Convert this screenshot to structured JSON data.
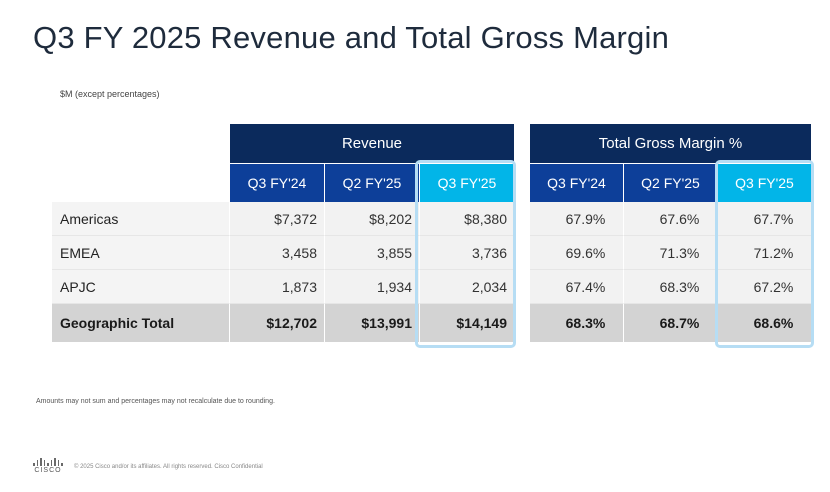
{
  "title": "Q3 FY 2025 Revenue and Total Gross Margin",
  "units": "$M (except percentages)",
  "revenue": {
    "group_label": "Revenue",
    "columns": [
      "Q3 FY'24",
      "Q2 FY'25",
      "Q3 FY'25"
    ],
    "rows": [
      {
        "label": "Americas",
        "values": [
          "$7,372",
          "$8,202",
          "$8,380"
        ]
      },
      {
        "label": "EMEA",
        "values": [
          "3,458",
          "3,855",
          "3,736"
        ]
      },
      {
        "label": "APJC",
        "values": [
          "1,873",
          "1,934",
          "2,034"
        ]
      },
      {
        "label": "Geographic Total",
        "values": [
          "$12,702",
          "$13,991",
          "$14,149"
        ]
      }
    ]
  },
  "gross_margin": {
    "group_label": "Total Gross Margin %",
    "columns": [
      "Q3 FY'24",
      "Q2 FY'25",
      "Q3 FY'25"
    ],
    "rows": [
      {
        "values": [
          "67.9%",
          "67.6%",
          "67.7%"
        ]
      },
      {
        "values": [
          "69.6%",
          "71.3%",
          "71.2%"
        ]
      },
      {
        "values": [
          "67.4%",
          "68.3%",
          "67.2%"
        ]
      },
      {
        "values": [
          "68.3%",
          "68.7%",
          "68.6%"
        ]
      }
    ]
  },
  "footnote": "Amounts may not sum and percentages may not recalculate due to rounding.",
  "footer": {
    "logo_text": "CISCO",
    "copyright": "© 2025  Cisco and/or its affiliates. All rights reserved.    Cisco Confidential"
  },
  "colors": {
    "header_dark": "#0b2a5c",
    "header_col": "#0d3f99",
    "highlight": "#02b5e8",
    "total_row": "#d3d3d3"
  }
}
